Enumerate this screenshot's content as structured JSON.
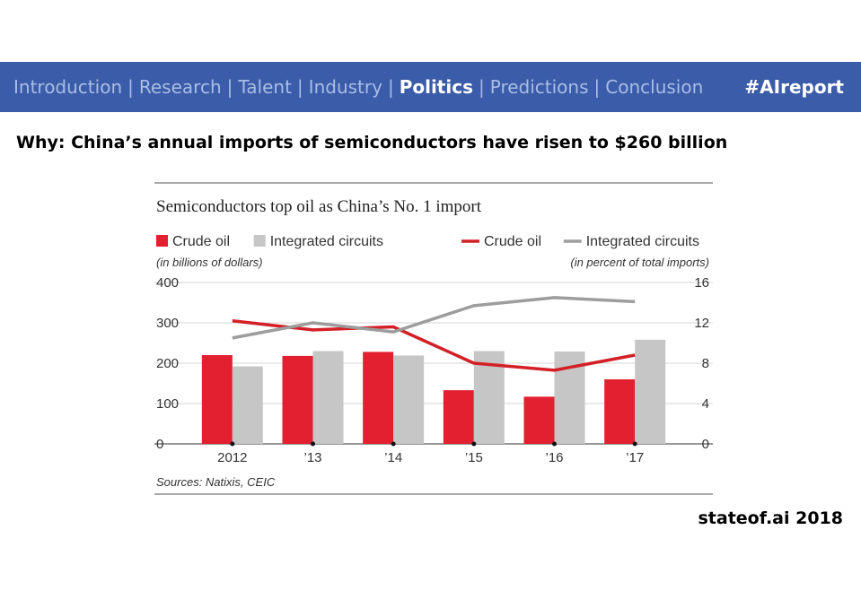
{
  "nav": {
    "items": [
      "Introduction",
      "Research",
      "Talent",
      "Industry",
      "Politics",
      "Predictions",
      "Conclusion"
    ],
    "active_index": 4,
    "hashtag": "#AIreport",
    "colors": {
      "bar": "#3b5ca8",
      "inactive_text": "#a9bde6",
      "active_text": "#ffffff"
    }
  },
  "headline": "Why: China’s annual imports of semiconductors have risen to $260 billion",
  "footer": {
    "brand": "stateof.ai 2018"
  },
  "chart_data": {
    "type": "bar",
    "title": "Semiconductors top oil as China’s No. 1 import",
    "categories": [
      "2012",
      "’13",
      "’14",
      "’15",
      "’16",
      "’17"
    ],
    "bar_axis_note": "(in billions of dollars)",
    "line_axis_note": "(in percent of total imports)",
    "source": "Sources: Natixis, CEIC",
    "ylim_left": [
      0,
      400
    ],
    "yticks_left": [
      "0",
      "100",
      "200",
      "300",
      "400"
    ],
    "ylim_right": [
      0,
      16
    ],
    "yticks_right": [
      "0",
      "4",
      "8",
      "12",
      "16"
    ],
    "grid": true,
    "legend_placement": "top",
    "series": [
      {
        "name": "Crude oil",
        "kind": "bar",
        "axis": "left",
        "color": "#e2202f",
        "values": [
          220,
          218,
          228,
          133,
          117,
          160
        ]
      },
      {
        "name": "Integrated circuits",
        "kind": "bar",
        "axis": "left",
        "color": "#c6c6c6",
        "values": [
          192,
          230,
          219,
          230,
          229,
          258
        ]
      },
      {
        "name": "Crude oil",
        "kind": "line",
        "axis": "right",
        "color": "#d32026",
        "values": [
          12.2,
          11.3,
          11.6,
          8.0,
          7.3,
          8.8
        ]
      },
      {
        "name": "Integrated circuits",
        "kind": "line",
        "axis": "right",
        "color": "#9d9d9d",
        "values": [
          10.5,
          12.0,
          11.1,
          13.7,
          14.5,
          14.1
        ]
      }
    ]
  }
}
